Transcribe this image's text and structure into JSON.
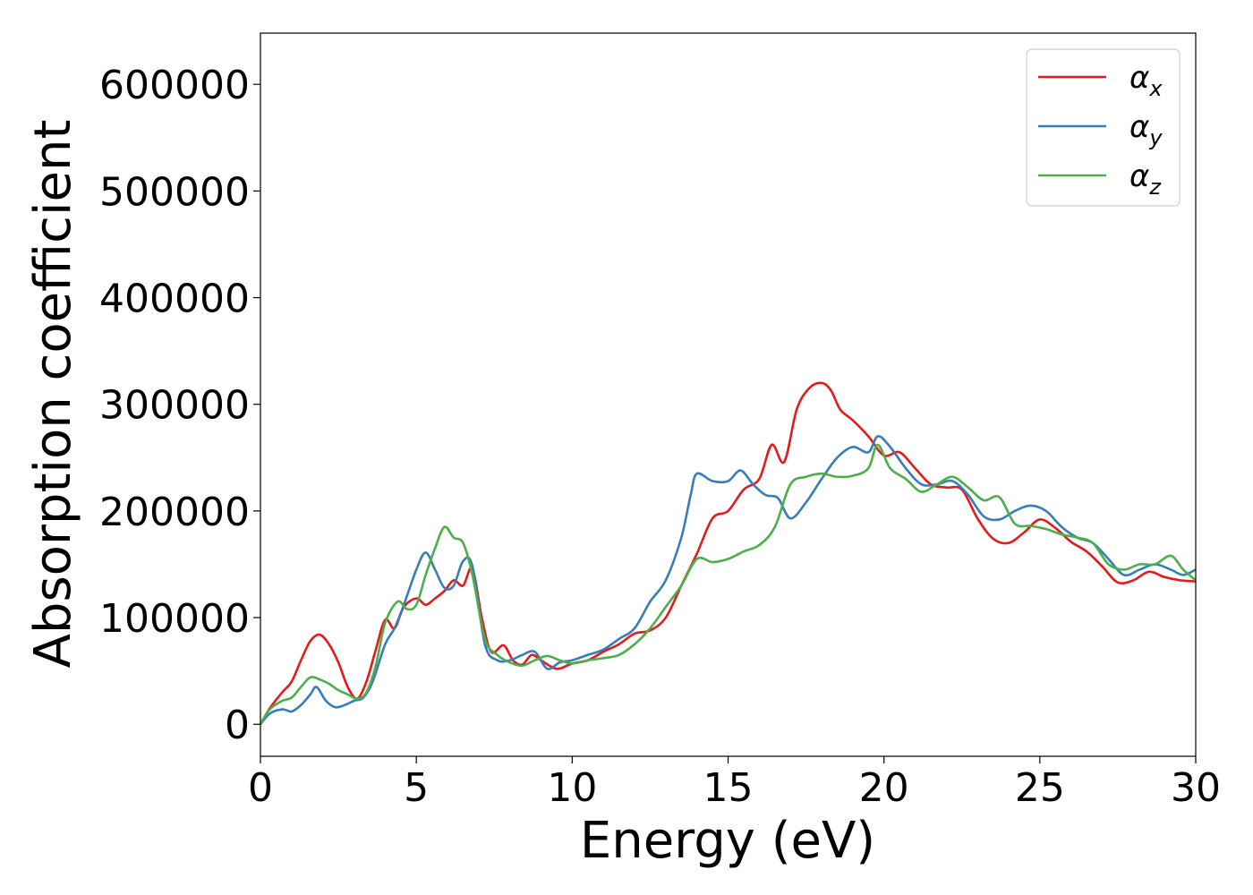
{
  "chart_data": {
    "type": "line",
    "title": "",
    "xlabel": "Energy (eV)",
    "ylabel": "Absorption coefficient",
    "xlim": [
      0,
      30
    ],
    "ylim": [
      -30000,
      648000
    ],
    "xticks": [
      0,
      5,
      10,
      15,
      20,
      25,
      30
    ],
    "xtick_labels": [
      "0",
      "5",
      "10",
      "15",
      "20",
      "25",
      "30"
    ],
    "yticks": [
      0,
      100000,
      200000,
      300000,
      400000,
      500000,
      600000
    ],
    "ytick_labels": [
      "0",
      "100000",
      "200000",
      "300000",
      "400000",
      "500000",
      "600000"
    ],
    "grid": false,
    "legend_position": "top-right",
    "series": [
      {
        "name": "α_x",
        "legend_main": "α",
        "legend_sub": "x",
        "color": "#e41a1c",
        "x": [
          0,
          0.3,
          0.7,
          1.0,
          1.3,
          1.6,
          1.9,
          2.2,
          2.5,
          2.8,
          3.1,
          3.4,
          3.7,
          4.0,
          4.3,
          4.6,
          5.0,
          5.3,
          5.6,
          5.9,
          6.2,
          6.5,
          6.8,
          7.1,
          7.4,
          7.8,
          8.1,
          8.4,
          8.7,
          9.0,
          9.5,
          10.0,
          10.5,
          11.0,
          11.5,
          12.0,
          12.5,
          13.0,
          13.5,
          14.0,
          14.5,
          15.0,
          15.5,
          16.0,
          16.4,
          16.8,
          17.2,
          17.6,
          18.0,
          18.3,
          18.6,
          19.0,
          19.5,
          20.0,
          20.5,
          21.0,
          21.5,
          22.0,
          22.5,
          23.0,
          23.5,
          24.0,
          24.5,
          25.0,
          25.5,
          26.0,
          26.5,
          27.0,
          27.5,
          28.0,
          28.5,
          29.0,
          29.5,
          30.0
        ],
        "y": [
          0,
          15000,
          30000,
          40000,
          60000,
          78000,
          84000,
          75000,
          58000,
          35000,
          24000,
          40000,
          70000,
          98000,
          90000,
          110000,
          118000,
          112000,
          118000,
          125000,
          135000,
          130000,
          146000,
          100000,
          68000,
          74000,
          60000,
          56000,
          65000,
          60000,
          52000,
          57000,
          60000,
          68000,
          75000,
          85000,
          88000,
          100000,
          130000,
          160000,
          193000,
          200000,
          220000,
          230000,
          262000,
          246000,
          295000,
          315000,
          320000,
          313000,
          295000,
          285000,
          270000,
          252000,
          255000,
          240000,
          225000,
          222000,
          220000,
          193000,
          174000,
          170000,
          180000,
          192000,
          184000,
          171000,
          162000,
          148000,
          133000,
          135000,
          143000,
          138000,
          135000,
          134000
        ]
      },
      {
        "name": "α_y",
        "legend_main": "α",
        "legend_sub": "y",
        "color": "#377eb8",
        "x": [
          0,
          0.3,
          0.7,
          1.0,
          1.3,
          1.6,
          1.8,
          2.1,
          2.4,
          2.7,
          3.0,
          3.3,
          3.6,
          4.0,
          4.3,
          4.6,
          5.0,
          5.3,
          5.6,
          5.9,
          6.2,
          6.5,
          6.8,
          7.2,
          7.6,
          8.0,
          8.4,
          8.8,
          9.2,
          9.6,
          10.0,
          10.5,
          11.0,
          11.5,
          12.0,
          12.5,
          13.0,
          13.5,
          13.8,
          14.0,
          14.5,
          15.0,
          15.4,
          15.8,
          16.2,
          16.6,
          17.0,
          17.5,
          18.0,
          18.5,
          19.0,
          19.5,
          19.8,
          20.2,
          20.7,
          21.2,
          21.7,
          22.2,
          22.7,
          23.2,
          23.7,
          24.2,
          24.7,
          25.2,
          25.7,
          26.2,
          26.7,
          27.2,
          27.7,
          28.2,
          28.7,
          29.2,
          29.6,
          30.0
        ],
        "y": [
          0,
          10000,
          14000,
          12000,
          18000,
          28000,
          35000,
          22000,
          16000,
          18000,
          22000,
          25000,
          40000,
          75000,
          90000,
          112000,
          145000,
          161000,
          145000,
          128000,
          130000,
          153000,
          148000,
          75000,
          60000,
          60000,
          65000,
          68000,
          52000,
          58000,
          60000,
          65000,
          70000,
          80000,
          90000,
          115000,
          135000,
          175000,
          215000,
          235000,
          228000,
          228000,
          238000,
          225000,
          215000,
          212000,
          193000,
          208000,
          230000,
          250000,
          260000,
          255000,
          270000,
          260000,
          240000,
          225000,
          225000,
          228000,
          215000,
          195000,
          192000,
          200000,
          205000,
          200000,
          185000,
          175000,
          170000,
          155000,
          140000,
          145000,
          150000,
          145000,
          140000,
          145000
        ]
      },
      {
        "name": "α_z",
        "legend_main": "α",
        "legend_sub": "z",
        "color": "#4daf4a",
        "x": [
          0,
          0.3,
          0.7,
          1.0,
          1.3,
          1.6,
          1.9,
          2.2,
          2.5,
          2.8,
          3.1,
          3.4,
          3.7,
          4.0,
          4.4,
          4.7,
          5.0,
          5.3,
          5.6,
          5.9,
          6.2,
          6.5,
          6.8,
          7.2,
          7.6,
          8.0,
          8.4,
          8.8,
          9.2,
          9.6,
          10.0,
          10.5,
          11.0,
          11.5,
          12.0,
          12.5,
          13.0,
          13.5,
          14.0,
          14.5,
          15.0,
          15.5,
          16.0,
          16.5,
          17.0,
          17.5,
          18.0,
          18.5,
          19.0,
          19.5,
          19.8,
          20.2,
          20.7,
          21.2,
          21.7,
          22.2,
          22.7,
          23.2,
          23.7,
          24.2,
          24.7,
          25.2,
          25.7,
          26.2,
          26.7,
          27.2,
          27.7,
          28.2,
          28.7,
          29.2,
          29.6,
          30.0
        ],
        "y": [
          0,
          14000,
          22000,
          25000,
          35000,
          44000,
          42000,
          38000,
          32000,
          28000,
          24000,
          30000,
          55000,
          95000,
          115000,
          108000,
          112000,
          140000,
          165000,
          185000,
          175000,
          170000,
          140000,
          80000,
          65000,
          58000,
          55000,
          60000,
          64000,
          60000,
          57000,
          60000,
          62000,
          65000,
          75000,
          90000,
          110000,
          130000,
          155000,
          152000,
          155000,
          162000,
          168000,
          185000,
          225000,
          232000,
          235000,
          232000,
          233000,
          240000,
          262000,
          240000,
          230000,
          218000,
          225000,
          232000,
          222000,
          210000,
          213000,
          188000,
          186000,
          183000,
          178000,
          175000,
          170000,
          150000,
          145000,
          150000,
          150000,
          158000,
          145000,
          135000
        ]
      }
    ]
  }
}
